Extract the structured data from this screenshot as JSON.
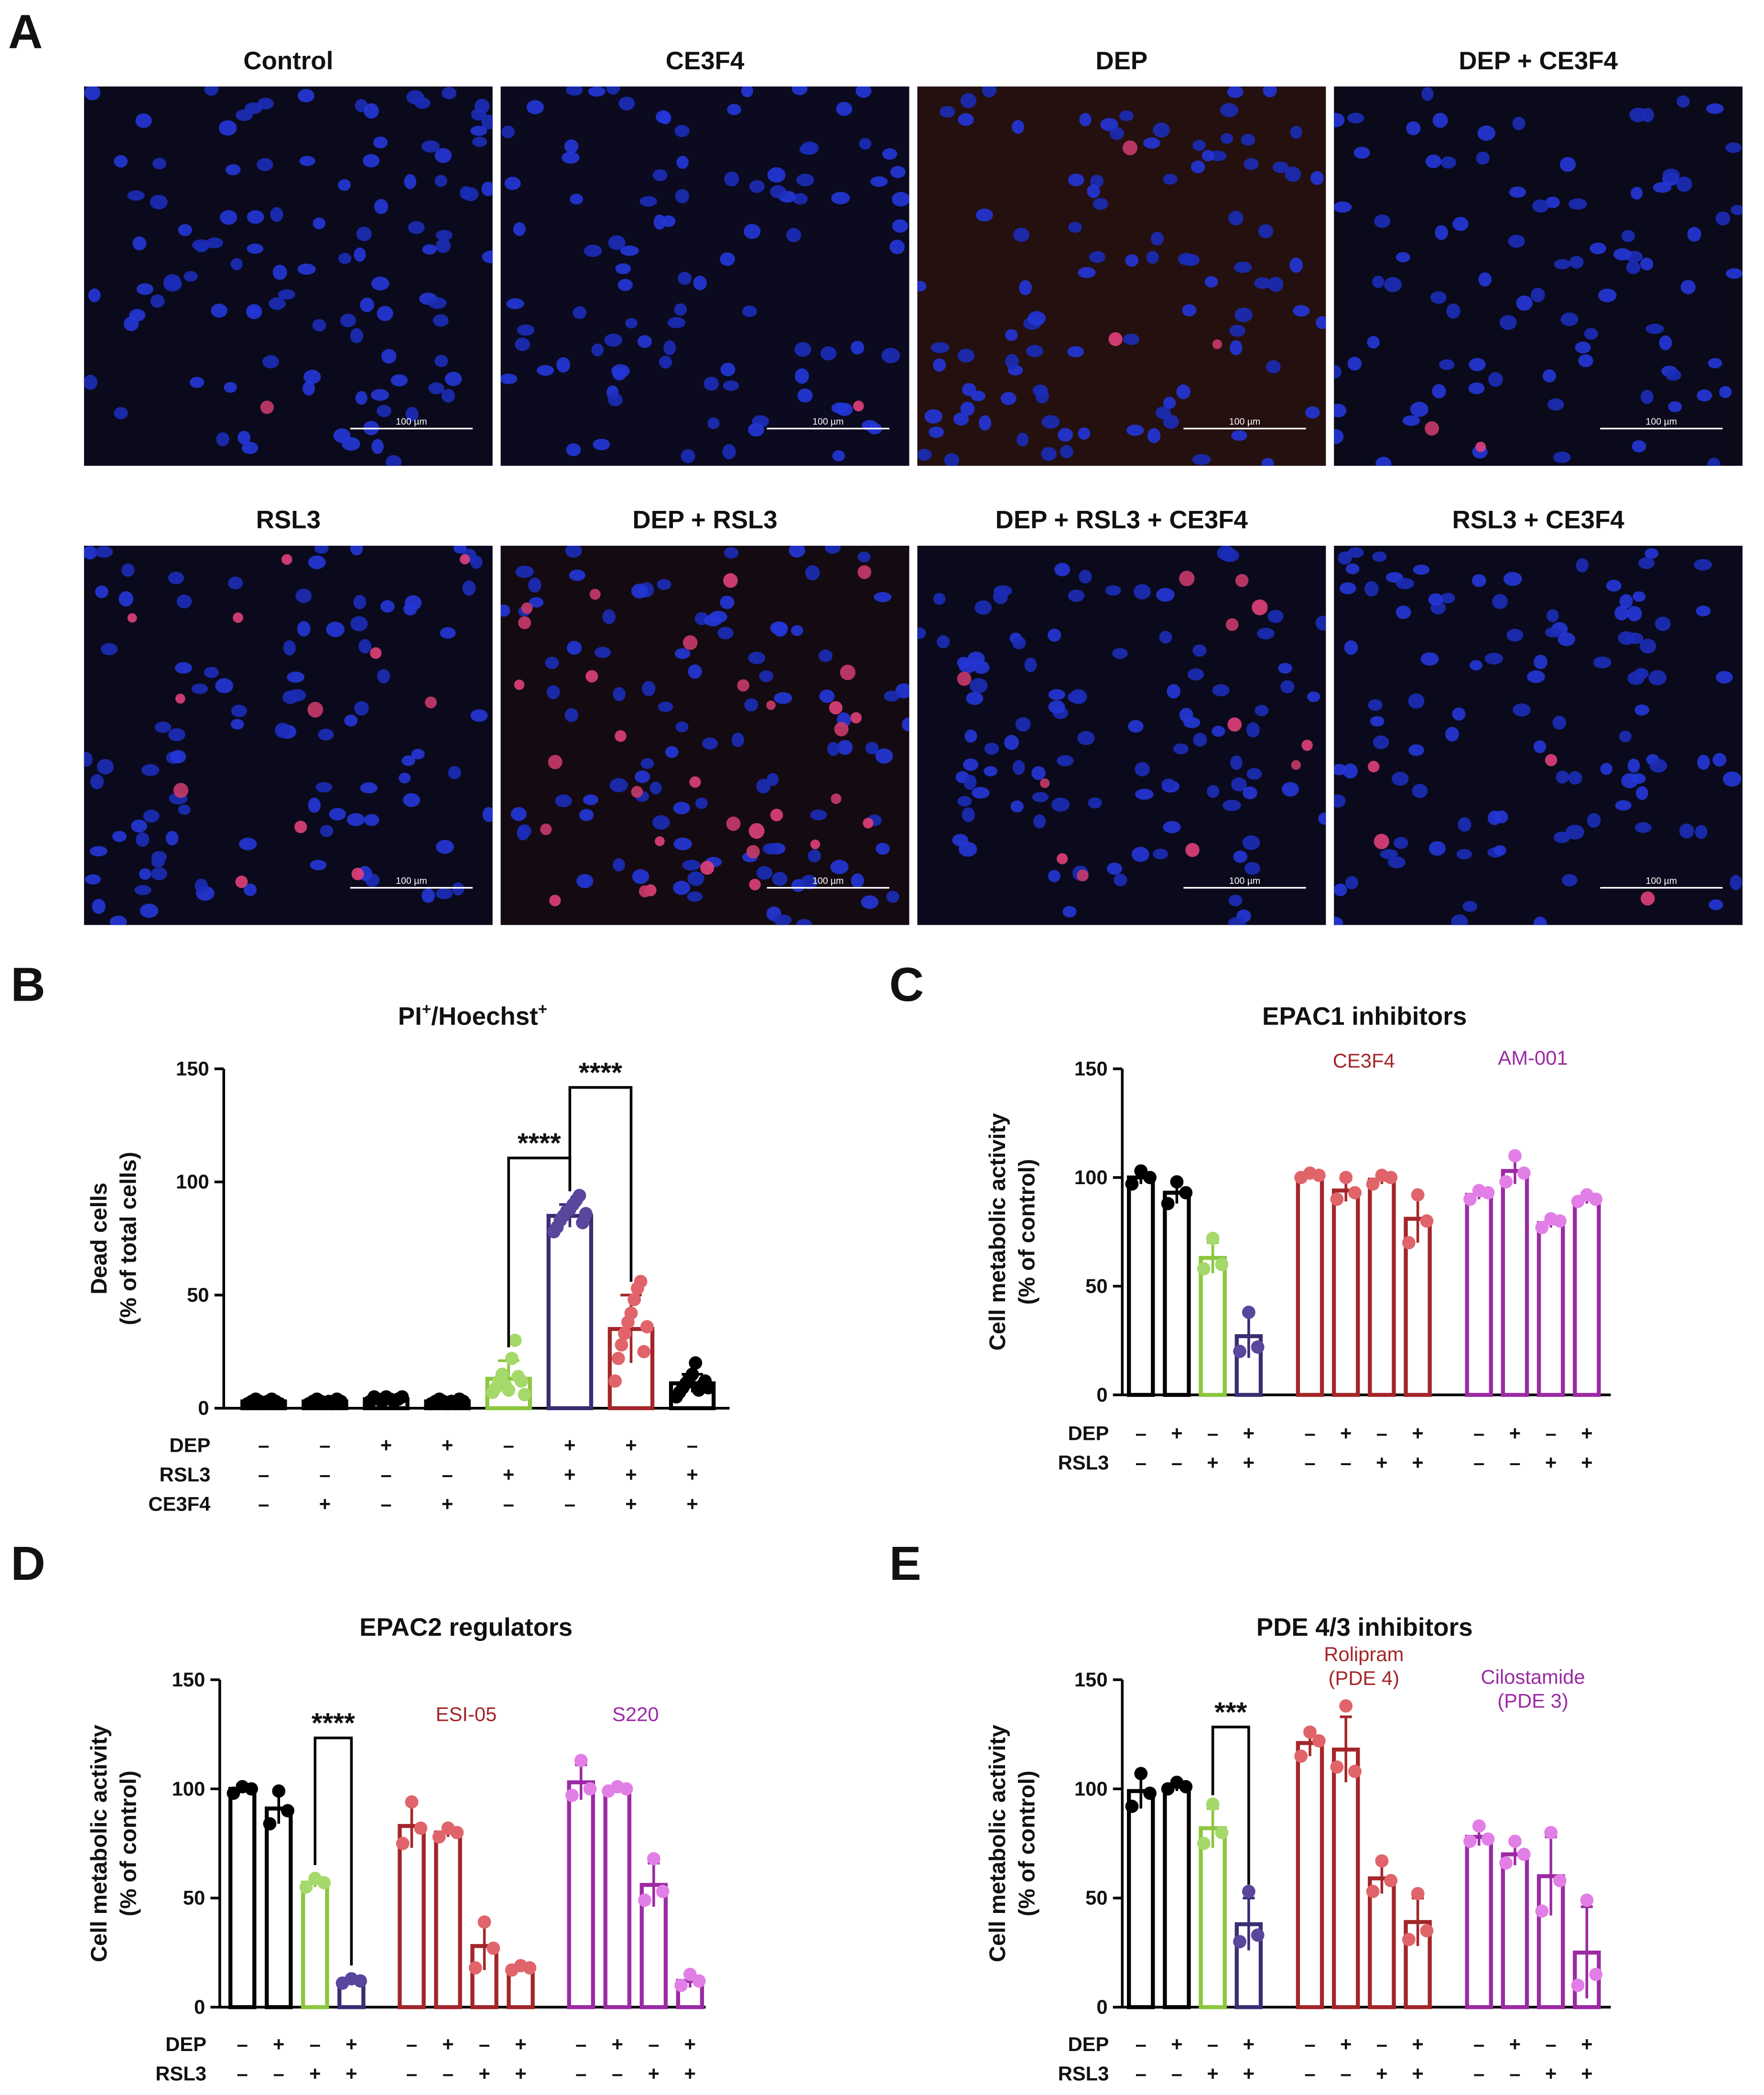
{
  "panel_a": {
    "label": "A",
    "scale_bar": "100 µm",
    "images": [
      "Control",
      "CE3F4",
      "DEP",
      "DEP + CE3F4",
      "RSL3",
      "DEP + RSL3",
      "DEP + RSL3 + CE3F4",
      "RSL3 + CE3F4"
    ]
  },
  "chart_data": [
    {
      "type": "bar",
      "panel": "B",
      "title": [
        "PI",
        "+",
        "/Hoechst",
        "+"
      ],
      "ylabel": [
        "Dead cells",
        "(% of total cells)"
      ],
      "ylim": [
        0,
        150
      ],
      "yticks": [
        0,
        50,
        100,
        150
      ],
      "conditions": [
        {
          "label": "DEP",
          "signs": [
            "–",
            "–",
            "+",
            "+",
            "–",
            "+",
            "+",
            "–"
          ]
        },
        {
          "label": "RSL3",
          "signs": [
            "–",
            "–",
            "–",
            "–",
            "+",
            "+",
            "+",
            "+"
          ]
        },
        {
          "label": "CE3F4",
          "signs": [
            "–",
            "+",
            "–",
            "+",
            "–",
            "–",
            "+",
            "+"
          ]
        }
      ],
      "series": [
        {
          "colors": [
            "#000000",
            "#000000",
            "#000000",
            "#000000",
            "#8cc63e",
            "#3b2d73",
            "#a3262a",
            "#000000"
          ],
          "point_colors": [
            "#000000",
            "#000000",
            "#000000",
            "#000000",
            "#a5d96b",
            "#5a469c",
            "#e0646a",
            "#000000"
          ],
          "values": [
            3,
            3,
            4,
            3,
            13,
            85,
            35,
            11
          ],
          "errors": [
            1,
            1,
            1,
            1,
            8,
            5,
            15,
            4
          ],
          "points": [
            [
              2,
              3,
              4,
              3,
              2,
              3,
              4,
              3,
              2
            ],
            [
              2,
              3,
              4,
              3,
              2,
              3,
              2,
              4,
              3
            ],
            [
              3,
              5,
              4,
              3,
              5,
              4,
              3,
              4,
              5
            ],
            [
              2,
              3,
              4,
              3,
              2,
              3,
              2,
              4,
              3
            ],
            [
              7,
              9,
              12,
              15,
              10,
              8,
              22,
              30,
              14,
              12,
              6
            ],
            [
              78,
              80,
              83,
              85,
              87,
              88,
              90,
              92,
              94,
              82,
              86
            ],
            [
              12,
              22,
              28,
              33,
              38,
              42,
              48,
              53,
              56,
              25,
              36
            ],
            [
              5,
              7,
              9,
              11,
              13,
              15,
              20,
              8,
              10,
              12,
              9
            ]
          ]
        }
      ],
      "annotations": [
        {
          "text": "****",
          "between": [
            4,
            5
          ]
        },
        {
          "text": "****",
          "between": [
            5,
            6
          ]
        }
      ]
    },
    {
      "type": "bar",
      "panel": "C",
      "title": "EPAC1 inhibitors",
      "ylabel": [
        "Cell metabolic activity",
        "(% of control)"
      ],
      "ylim": [
        0,
        150
      ],
      "yticks": [
        0,
        50,
        100,
        150
      ],
      "conditions": [
        {
          "label": "DEP",
          "signs": [
            "–",
            "+",
            "–",
            "+",
            "–",
            "+",
            "–",
            "+",
            "–",
            "+",
            "–",
            "+"
          ]
        },
        {
          "label": "RSL3",
          "signs": [
            "–",
            "–",
            "+",
            "+",
            "–",
            "–",
            "+",
            "+",
            "–",
            "–",
            "+",
            "+"
          ]
        }
      ],
      "series": [
        {
          "colors": [
            "#000000",
            "#000000",
            "#8cc63e",
            "#3b2d73"
          ],
          "point_colors": [
            "#000000",
            "#000000",
            "#a5d96b",
            "#5a469c"
          ],
          "values": [
            100,
            93,
            63,
            27
          ],
          "errors": [
            3,
            5,
            7,
            10
          ],
          "points": [
            [
              97,
              103,
              100
            ],
            [
              88,
              98,
              93
            ],
            [
              58,
              72,
              60
            ],
            [
              20,
              38,
              22
            ]
          ]
        },
        {
          "name": "CE3F4",
          "color": "#a3262a",
          "point_color": "#e0646a",
          "values": [
            101,
            94,
            99,
            81
          ],
          "errors": [
            1,
            5,
            2,
            11
          ],
          "points": [
            [
              100,
              102,
              101
            ],
            [
              90,
              100,
              93
            ],
            [
              97,
              101,
              100
            ],
            [
              70,
              92,
              80
            ]
          ]
        },
        {
          "name": "AM-001",
          "color": "#9b2aa3",
          "point_color": "#e27fe6",
          "values": [
            92,
            103,
            79,
            90
          ],
          "errors": [
            2,
            6,
            2,
            2
          ],
          "points": [
            [
              90,
              94,
              93
            ],
            [
              98,
              110,
              102
            ],
            [
              77,
              81,
              80
            ],
            [
              89,
              92,
              90
            ]
          ]
        }
      ],
      "annotations": []
    },
    {
      "type": "bar",
      "panel": "D",
      "title": "EPAC2 regulators",
      "ylabel": [
        "Cell metabolic activity",
        "(% of control)"
      ],
      "ylim": [
        0,
        150
      ],
      "yticks": [
        0,
        50,
        100,
        150
      ],
      "conditions": [
        {
          "label": "DEP",
          "signs": [
            "–",
            "+",
            "–",
            "+",
            "–",
            "+",
            "–",
            "+",
            "–",
            "+",
            "–",
            "+"
          ]
        },
        {
          "label": "RSL3",
          "signs": [
            "–",
            "–",
            "+",
            "+",
            "–",
            "–",
            "+",
            "+",
            "–",
            "–",
            "+",
            "+"
          ]
        }
      ],
      "series": [
        {
          "colors": [
            "#000000",
            "#000000",
            "#8cc63e",
            "#3b2d73"
          ],
          "point_colors": [
            "#000000",
            "#000000",
            "#a5d96b",
            "#5a469c"
          ],
          "values": [
            100,
            91,
            57,
            12
          ],
          "errors": [
            2,
            7,
            2,
            1
          ],
          "points": [
            [
              98,
              101,
              100
            ],
            [
              84,
              99,
              90
            ],
            [
              55,
              59,
              57
            ],
            [
              11,
              13,
              12
            ]
          ]
        },
        {
          "name": "ESI-05",
          "color": "#a3262a",
          "point_color": "#e0646a",
          "values": [
            83,
            80,
            28,
            18
          ],
          "errors": [
            10,
            2,
            11,
            1
          ],
          "points": [
            [
              75,
              94,
              82
            ],
            [
              78,
              82,
              80
            ],
            [
              18,
              39,
              27
            ],
            [
              17,
              19,
              18
            ]
          ]
        },
        {
          "name": "S220",
          "color": "#9b2aa3",
          "point_color": "#e27fe6",
          "values": [
            103,
            100,
            56,
            12
          ],
          "errors": [
            8,
            1,
            10,
            3
          ],
          "points": [
            [
              97,
              113,
              100
            ],
            [
              99,
              101,
              100
            ],
            [
              49,
              68,
              53
            ],
            [
              10,
              15,
              12
            ]
          ]
        }
      ],
      "annotations": [
        {
          "text": "****",
          "between": [
            2,
            3
          ]
        }
      ]
    },
    {
      "type": "bar",
      "panel": "E",
      "title": "PDE 4/3 inhibitors",
      "ylabel": [
        "Cell metabolic activity",
        "(% of control)"
      ],
      "ylim": [
        0,
        150
      ],
      "yticks": [
        0,
        50,
        100,
        150
      ],
      "conditions": [
        {
          "label": "DEP",
          "signs": [
            "–",
            "+",
            "–",
            "+",
            "–",
            "+",
            "–",
            "+",
            "–",
            "+",
            "–",
            "+"
          ]
        },
        {
          "label": "RSL3",
          "signs": [
            "–",
            "–",
            "+",
            "+",
            "–",
            "–",
            "+",
            "+",
            "–",
            "–",
            "+",
            "+"
          ]
        }
      ],
      "series": [
        {
          "colors": [
            "#000000",
            "#000000",
            "#8cc63e",
            "#3b2d73"
          ],
          "point_colors": [
            "#000000",
            "#000000",
            "#a5d96b",
            "#5a469c"
          ],
          "values": [
            99,
            101,
            82,
            38
          ],
          "errors": [
            8,
            2,
            9,
            12
          ],
          "points": [
            [
              92,
              107,
              98
            ],
            [
              100,
              103,
              101
            ],
            [
              75,
              93,
              80
            ],
            [
              30,
              53,
              33
            ]
          ]
        },
        {
          "name": [
            "Rolipram",
            "(PDE 4)"
          ],
          "color": "#a3262a",
          "point_color": "#e0646a",
          "values": [
            121,
            118,
            59,
            39
          ],
          "errors": [
            6,
            15,
            7,
            11
          ],
          "points": [
            [
              115,
              126,
              122
            ],
            [
              110,
              138,
              108
            ],
            [
              53,
              67,
              58
            ],
            [
              31,
              52,
              35
            ]
          ]
        },
        {
          "name": [
            "Cilostamide",
            "(PDE 3)"
          ],
          "color": "#9b2aa3",
          "point_color": "#e27fe6",
          "values": [
            78,
            70,
            60,
            25
          ],
          "errors": [
            4,
            5,
            18,
            21
          ],
          "points": [
            [
              76,
              83,
              77
            ],
            [
              66,
              76,
              70
            ],
            [
              44,
              80,
              58
            ],
            [
              10,
              49,
              15
            ]
          ]
        }
      ],
      "annotations": [
        {
          "text": "***",
          "between": [
            2,
            3
          ]
        }
      ]
    }
  ]
}
